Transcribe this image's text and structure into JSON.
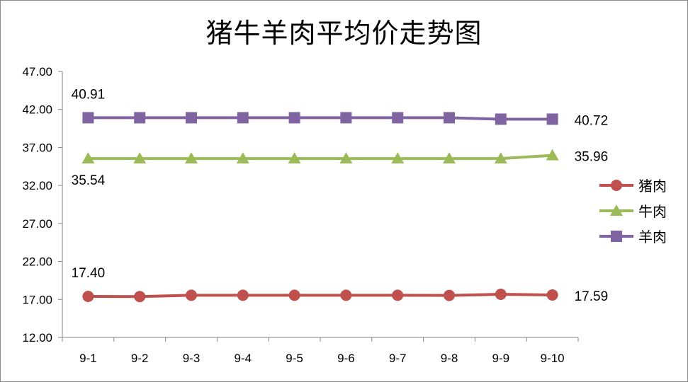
{
  "chart_data": {
    "type": "line",
    "title": "猪牛羊肉平均价走势图",
    "xlabel": "",
    "ylabel": "",
    "categories": [
      "9-1",
      "9-2",
      "9-3",
      "9-4",
      "9-5",
      "9-6",
      "9-7",
      "9-8",
      "9-9",
      "9-10"
    ],
    "ylim": [
      12,
      47
    ],
    "yticks": [
      "12.00",
      "17.00",
      "22.00",
      "27.00",
      "32.00",
      "37.00",
      "42.00",
      "47.00"
    ],
    "grid": false,
    "legend": "right",
    "series": [
      {
        "name": "猪肉",
        "color": "#c0504d",
        "marker": "circle",
        "values": [
          17.4,
          17.38,
          17.55,
          17.55,
          17.55,
          17.55,
          17.55,
          17.53,
          17.68,
          17.59
        ]
      },
      {
        "name": "牛肉",
        "color": "#9bbb59",
        "marker": "triangle",
        "values": [
          35.54,
          35.54,
          35.54,
          35.54,
          35.54,
          35.54,
          35.54,
          35.54,
          35.54,
          35.96
        ]
      },
      {
        "name": "羊肉",
        "color": "#8064a2",
        "marker": "square",
        "values": [
          40.91,
          40.91,
          40.91,
          40.91,
          40.91,
          40.91,
          40.91,
          40.91,
          40.72,
          40.72
        ]
      }
    ],
    "data_labels": [
      {
        "text": "40.91",
        "series": 2,
        "index": 0,
        "position": "above"
      },
      {
        "text": "40.72",
        "series": 2,
        "index": 9,
        "position": "right"
      },
      {
        "text": "35.54",
        "series": 1,
        "index": 0,
        "position": "below"
      },
      {
        "text": "35.96",
        "series": 1,
        "index": 9,
        "position": "right"
      },
      {
        "text": "17.40",
        "series": 0,
        "index": 0,
        "position": "above"
      },
      {
        "text": "17.59",
        "series": 0,
        "index": 9,
        "position": "right"
      }
    ]
  }
}
